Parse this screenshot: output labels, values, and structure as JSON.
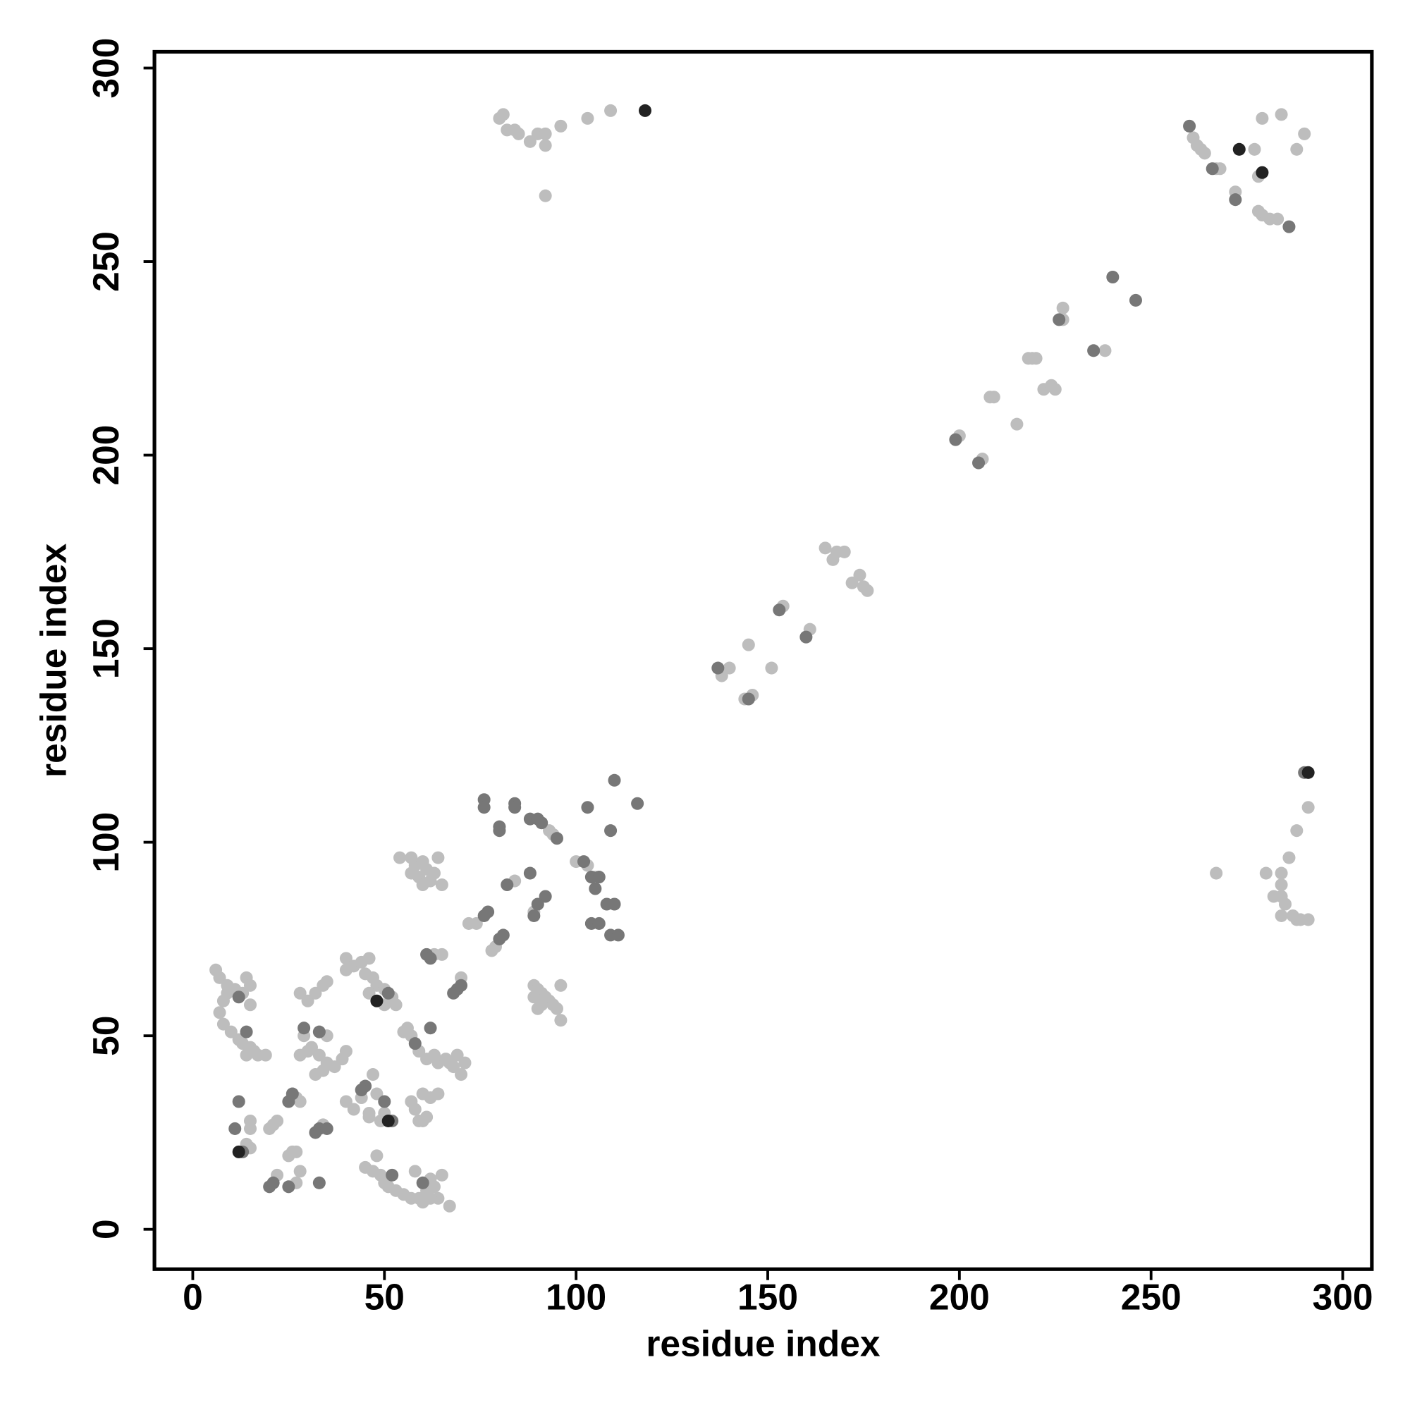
{
  "chart_data": {
    "type": "scatter",
    "x_label": "residue index",
    "y_label": "residue index",
    "xlim": [
      -10,
      307.6
    ],
    "ylim": [
      -10.3,
      304.2
    ],
    "xticks": [
      0,
      50,
      100,
      150,
      200,
      250,
      300
    ],
    "yticks": [
      0,
      50,
      100,
      150,
      200,
      250,
      300
    ],
    "grid": false,
    "series": [
      {
        "color": "#bdbdbd",
        "x": [
          80,
          81,
          82,
          84,
          85,
          88,
          90,
          92,
          92,
          96,
          103,
          109,
          92,
          261,
          262,
          263,
          264,
          267,
          268,
          272,
          277,
          279,
          284,
          288,
          290,
          279,
          281,
          283,
          278,
          278,
          227,
          227,
          238,
          218,
          219,
          220,
          222,
          224,
          225,
          208,
          209,
          215,
          200,
          206,
          165,
          168,
          170,
          167,
          174,
          175,
          176,
          172,
          154,
          161,
          138,
          140,
          145,
          151,
          144,
          146,
          291,
          288,
          286,
          267,
          280,
          284,
          284,
          282,
          284,
          285,
          284,
          287,
          288,
          289,
          291,
          93,
          94,
          100,
          103,
          105,
          84,
          89,
          72,
          74,
          78,
          79,
          70,
          63,
          65,
          54,
          57,
          58,
          60,
          61,
          63,
          64,
          59,
          62,
          65,
          60,
          57,
          89,
          90,
          91,
          92,
          93,
          94,
          95,
          96,
          96,
          91,
          90,
          89,
          40,
          42,
          44,
          46,
          45,
          47,
          48,
          50,
          52,
          53,
          50,
          46,
          40,
          28,
          30,
          32,
          34,
          35,
          29,
          31,
          33,
          35,
          37,
          39,
          40,
          35,
          34,
          32,
          28,
          30,
          6,
          7,
          9,
          11,
          13,
          14,
          15,
          8,
          7,
          8,
          10,
          12,
          15,
          16,
          17,
          19,
          14,
          13,
          15,
          9,
          15,
          15,
          15,
          20,
          21,
          22,
          14,
          22,
          25,
          26,
          27,
          27,
          28,
          27,
          28,
          34,
          40,
          42,
          44,
          46,
          47,
          48,
          49,
          46,
          50,
          45,
          47,
          48,
          49,
          50,
          51,
          53,
          55,
          57,
          59,
          58,
          61,
          62,
          63,
          64,
          65,
          67,
          60,
          62,
          55,
          56,
          57,
          59,
          61,
          63,
          64,
          66,
          68,
          70,
          69,
          71,
          57,
          58,
          60,
          62,
          64,
          61,
          59,
          60,
          67
        ],
        "y": [
          287,
          288,
          284,
          284,
          283,
          281,
          283,
          283,
          280,
          285,
          287,
          289,
          267,
          282,
          280,
          279,
          278,
          274,
          274,
          268,
          279,
          287,
          288,
          279,
          283,
          262,
          261,
          261,
          263,
          272,
          238,
          235,
          227,
          225,
          225,
          225,
          217,
          218,
          217,
          215,
          215,
          208,
          205,
          199,
          176,
          175,
          175,
          173,
          169,
          166,
          165,
          167,
          161,
          155,
          143,
          145,
          151,
          145,
          137,
          138,
          109,
          103,
          96,
          92,
          92,
          92,
          89,
          86,
          86,
          84,
          81,
          81,
          80,
          80,
          80,
          103,
          102,
          95,
          94,
          91,
          90,
          82,
          79,
          79,
          72,
          73,
          65,
          71,
          71,
          96,
          96,
          94,
          95,
          93,
          92,
          96,
          91,
          90,
          89,
          89,
          92,
          63,
          62,
          61,
          60,
          59,
          58,
          57,
          54,
          63,
          58,
          57,
          60,
          70,
          68,
          69,
          70,
          66,
          65,
          63,
          62,
          60,
          58,
          58,
          61,
          67,
          61,
          59,
          61,
          63,
          64,
          50,
          47,
          45,
          43,
          42,
          44,
          46,
          50,
          41,
          40,
          45,
          46,
          67,
          65,
          63,
          62,
          61,
          65,
          63,
          59,
          56,
          53,
          51,
          49,
          47,
          46,
          45,
          45,
          45,
          48,
          58,
          61,
          21,
          26,
          28,
          26,
          27,
          28,
          22,
          14,
          19,
          20,
          20,
          12,
          15,
          34,
          33,
          27,
          33,
          31,
          34,
          30,
          40,
          35,
          28,
          29,
          30,
          16,
          15,
          19,
          14,
          12,
          11,
          10,
          9,
          8,
          8,
          15,
          10,
          13,
          11,
          8,
          14,
          6,
          7,
          8,
          51,
          52,
          50,
          46,
          44,
          45,
          43,
          44,
          42,
          40,
          45,
          43,
          33,
          31,
          35,
          34,
          35,
          29,
          28,
          28,
          43
        ]
      },
      {
        "color": "#777777",
        "x": [
          260,
          266,
          272,
          286,
          240,
          246,
          226,
          235,
          199,
          205,
          153,
          160,
          137,
          145,
          290,
          76,
          76,
          84,
          84,
          80,
          80,
          88,
          90,
          91,
          95,
          103,
          110,
          116,
          109,
          102,
          104,
          106,
          105,
          108,
          110,
          104,
          106,
          109,
          111,
          92,
          88,
          82,
          90,
          89,
          81,
          80,
          77,
          76,
          70,
          69,
          68,
          61,
          62,
          51,
          29,
          33,
          12,
          14,
          12,
          11,
          13,
          20,
          21,
          25,
          33,
          25,
          26,
          32,
          33,
          35,
          45,
          50,
          52,
          44,
          52,
          60,
          58,
          62
        ],
        "y": [
          285,
          274,
          266,
          259,
          246,
          240,
          235,
          227,
          204,
          198,
          160,
          153,
          145,
          137,
          118,
          111,
          109,
          110,
          109,
          104,
          103,
          106,
          106,
          105,
          101,
          109,
          116,
          110,
          103,
          95,
          91,
          91,
          88,
          84,
          84,
          79,
          79,
          76,
          76,
          86,
          92,
          89,
          84,
          81,
          76,
          75,
          82,
          81,
          63,
          62,
          61,
          71,
          70,
          61,
          52,
          51,
          60,
          51,
          33,
          26,
          20,
          11,
          12,
          11,
          12,
          33,
          35,
          25,
          26,
          26,
          37,
          33,
          28,
          36,
          14,
          12,
          48,
          52
        ]
      },
      {
        "color": "#222222",
        "x": [
          118,
          273,
          279,
          291,
          12,
          48,
          51
        ],
        "y": [
          289,
          279,
          273,
          118,
          20,
          59,
          28
        ]
      }
    ]
  }
}
